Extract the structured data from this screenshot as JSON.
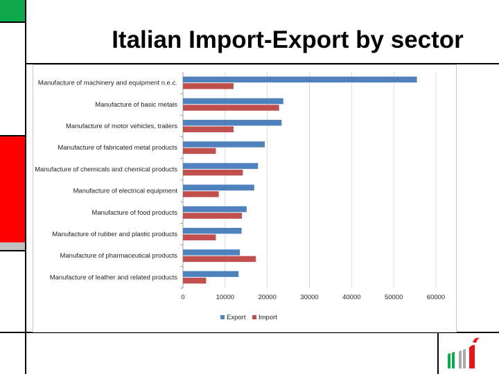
{
  "colors": {
    "green": "#0da94b",
    "red": "#ff0000",
    "grey": "#c0c0c0",
    "line": "#000000",
    "export": "#4f81bd",
    "import": "#c0504d"
  },
  "slide": {
    "title": "Italian Import-Export by sector",
    "logo_icon": "bar-logo-icon"
  },
  "chart_data": {
    "type": "bar",
    "orientation": "horizontal",
    "title": "",
    "xlabel": "",
    "ylabel": "",
    "xlim": [
      0,
      60000
    ],
    "x_ticks": [
      0,
      10000,
      20000,
      30000,
      40000,
      50000,
      60000
    ],
    "x_tick_labels": [
      "0",
      "10000",
      "20000",
      "30000",
      "40000",
      "50000",
      "60000"
    ],
    "grid": true,
    "legend_position": "bottom",
    "categories": [
      "Manufacture of machinery and equipment n.e.c.",
      "Manufacture of basic metals",
      "Manufacture of motor vehicles, trailers",
      "Manufacture of fabricated metal products",
      "Manufacture of chemicals and chemical products",
      "Manufacture of electrical equipment",
      "Manufacture of food products",
      "Manufacture of rubber and plastic products",
      "Manufacture of pharmaceutical products",
      "Manufacture of leather and related products"
    ],
    "series": [
      {
        "name": "Export",
        "color": "#4f81bd",
        "values": [
          55500,
          23800,
          23400,
          19400,
          17800,
          16900,
          15100,
          13900,
          13500,
          13200
        ]
      },
      {
        "name": "Import",
        "color": "#c0504d",
        "values": [
          12000,
          22800,
          12000,
          7800,
          14200,
          8500,
          14000,
          7800,
          17300,
          5500
        ]
      }
    ]
  }
}
